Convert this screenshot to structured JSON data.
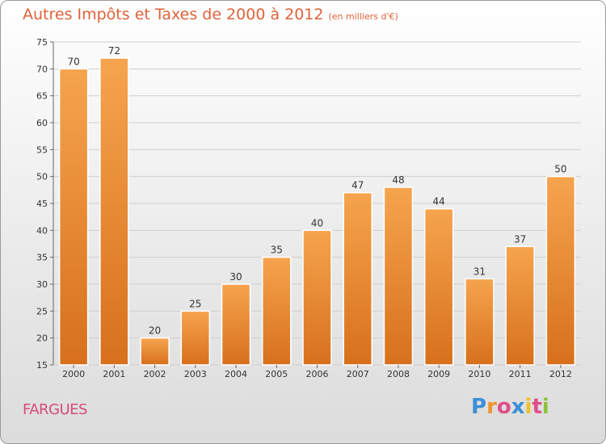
{
  "title": "Autres Impôts et Taxes de 2000 à 2012",
  "subtitle": "(en milliers d'€)",
  "commune": "FARGUES",
  "logo": {
    "letters": [
      "P",
      "r",
      "o",
      "x",
      "i",
      "t",
      "i"
    ],
    "colors": [
      "#3a8fd6",
      "#f0932b",
      "#e04e8a",
      "#3a8fd6",
      "#f0c02b",
      "#e04e8a",
      "#8fc23a"
    ]
  },
  "colors": {
    "bar_top": "#f6a44e",
    "bar_bottom": "#d7701c",
    "grid": "#cfcfcf",
    "axis_text": "#333333"
  },
  "chart_data": {
    "type": "bar",
    "title": "Autres Impôts et Taxes de 2000 à 2012",
    "subtitle": "(en milliers d'€)",
    "categories": [
      "2000",
      "2001",
      "2002",
      "2003",
      "2004",
      "2005",
      "2006",
      "2007",
      "2008",
      "2009",
      "2010",
      "2011",
      "2012"
    ],
    "values": [
      70,
      72,
      20,
      25,
      30,
      35,
      40,
      47,
      48,
      44,
      31,
      37,
      50
    ],
    "data_labels": [
      "70",
      "72",
      "20",
      "25",
      "30",
      "35",
      "40",
      "47",
      "48",
      "44",
      "31",
      "37",
      "50"
    ],
    "ylim": [
      15,
      75
    ],
    "yticks": [
      "15",
      "20",
      "25",
      "30",
      "35",
      "40",
      "45",
      "50",
      "55",
      "60",
      "65",
      "70",
      "75"
    ],
    "grid": true,
    "xlabel": "",
    "ylabel": ""
  }
}
